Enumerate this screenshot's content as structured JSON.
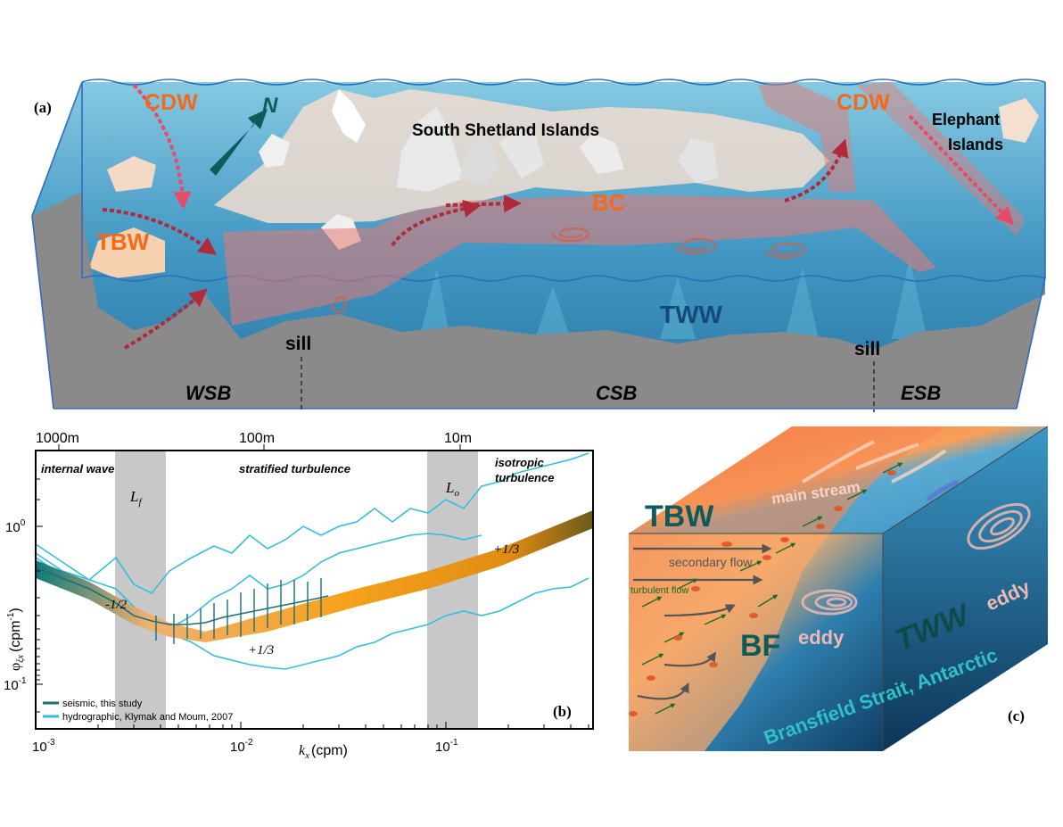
{
  "panel_a": {
    "panel_label": "(a)",
    "labels": {
      "cdw_left": "CDW",
      "cdw_right": "CDW",
      "north": "N",
      "south_shetland": "South Shetland Islands",
      "elephant_line1": "Elephant",
      "elephant_line2": "Islands",
      "tbw": "TBW",
      "bc": "BC",
      "tww": "TWW",
      "sill_left": "sill",
      "sill_right": "sill",
      "wsb": "WSB",
      "csb": "CSB",
      "esb": "ESB"
    },
    "colors": {
      "current": "#e8706a",
      "cdw_text": "#f26a1b",
      "water": "#2a7fb0",
      "seafloor": "#8a8a8a"
    }
  },
  "panel_b": {
    "panel_label": "(b)",
    "top_axis": [
      "1000m",
      "100m",
      "10m"
    ],
    "regime_labels": {
      "internal_wave": "internal wave",
      "stratified": "stratified turbulence",
      "isotropic_line1": "isotropic",
      "isotropic_line2": "turbulence"
    },
    "band_labels": {
      "lf_main": "L",
      "lf_sub": "f",
      "lo_main": "L",
      "lo_sub": "o"
    },
    "slope_labels": {
      "minus_half": "-1/2",
      "plus_third_mid": "+1/3",
      "plus_third_right": "+1/3"
    },
    "x_ticks": [
      {
        "base": "10",
        "exp": "-3"
      },
      {
        "base": "10",
        "exp": "-2"
      },
      {
        "base": "10",
        "exp": "-1"
      }
    ],
    "y_ticks": [
      {
        "base": "10",
        "exp": "0"
      },
      {
        "base": "10",
        "exp": "-1"
      }
    ],
    "xlabel_main": "k",
    "xlabel_sub": "x",
    "xlabel_unit": "(cpm)",
    "ylabel_main": "φ",
    "ylabel_sub": "ξx",
    "ylabel_unit": "(cpm",
    "ylabel_unit_exp": "-1",
    "ylabel_unit_close": ")",
    "legend": [
      {
        "label": "seismic, this study",
        "color": "#1a6f7a"
      },
      {
        "label": "hydrographic, Klymak and Moum, 2007",
        "color": "#33bde0"
      }
    ],
    "colors": {
      "seismic": "#1a6f7a",
      "hydro": "#33bde0",
      "band": "#f5a81c",
      "shade": "#c8c8c8"
    }
  },
  "panel_c": {
    "panel_label": "(c)",
    "labels": {
      "tbw": "TBW",
      "main_stream": "main stream",
      "secondary_flow": "secondary flow",
      "turbulent_flow": "turbulent flow",
      "bf": "BF",
      "eddy_front": "eddy",
      "eddy_side": "eddy",
      "tww": "TWW",
      "caption": "Bransfield Strait, Antarctic"
    },
    "colors": {
      "warm": "#f0623a",
      "cool": "#2e8fbf",
      "deep": "#123a5c"
    }
  }
}
